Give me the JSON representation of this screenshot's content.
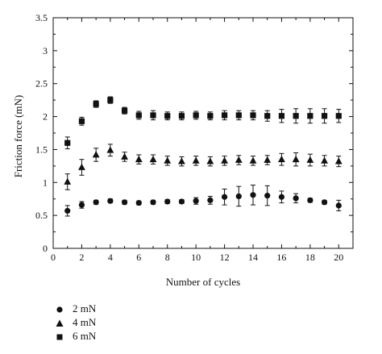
{
  "chart_data": {
    "type": "scatter",
    "xlabel": "Number of cycles",
    "ylabel": "Friction force (mN)",
    "xlim": [
      0,
      21
    ],
    "ylim": [
      0,
      3.5
    ],
    "xticks": [
      "0",
      "2",
      "4",
      "6",
      "8",
      "10",
      "12",
      "14",
      "16",
      "18",
      "20"
    ],
    "yticks": [
      "0",
      "0.5",
      "1",
      "1.5",
      "2",
      "2.5",
      "3",
      "3.5"
    ],
    "grid": false,
    "legend_position": "below-left",
    "x": [
      1,
      2,
      3,
      4,
      5,
      6,
      7,
      8,
      9,
      10,
      11,
      12,
      13,
      14,
      15,
      16,
      17,
      18,
      19,
      20
    ],
    "series": [
      {
        "name": "2 mN",
        "marker": "circle",
        "values": [
          0.57,
          0.66,
          0.7,
          0.72,
          0.7,
          0.69,
          0.7,
          0.71,
          0.71,
          0.72,
          0.73,
          0.78,
          0.79,
          0.81,
          0.8,
          0.78,
          0.76,
          0.73,
          0.7,
          0.65
        ],
        "errors": [
          0.08,
          0.05,
          0.03,
          0.03,
          0.03,
          0.03,
          0.03,
          0.03,
          0.03,
          0.05,
          0.06,
          0.12,
          0.15,
          0.15,
          0.15,
          0.09,
          0.07,
          0.03,
          0.03,
          0.08
        ]
      },
      {
        "name": "4 mN",
        "marker": "triangle",
        "values": [
          1.01,
          1.23,
          1.42,
          1.49,
          1.39,
          1.35,
          1.35,
          1.33,
          1.32,
          1.33,
          1.32,
          1.33,
          1.34,
          1.33,
          1.34,
          1.35,
          1.35,
          1.34,
          1.33,
          1.32
        ],
        "errors": [
          0.12,
          0.12,
          0.1,
          0.09,
          0.07,
          0.07,
          0.07,
          0.07,
          0.07,
          0.07,
          0.07,
          0.07,
          0.07,
          0.07,
          0.07,
          0.09,
          0.1,
          0.09,
          0.08,
          0.08
        ]
      },
      {
        "name": "6 mN",
        "marker": "square",
        "values": [
          1.6,
          1.93,
          2.19,
          2.25,
          2.09,
          2.02,
          2.02,
          2.01,
          2.01,
          2.02,
          2.01,
          2.02,
          2.02,
          2.02,
          2.01,
          2.01,
          2.01,
          2.01,
          2.01,
          2.01
        ],
        "errors": [
          0.09,
          0.06,
          0.05,
          0.05,
          0.05,
          0.06,
          0.07,
          0.06,
          0.06,
          0.06,
          0.06,
          0.07,
          0.07,
          0.07,
          0.08,
          0.1,
          0.11,
          0.11,
          0.11,
          0.1
        ]
      }
    ]
  }
}
